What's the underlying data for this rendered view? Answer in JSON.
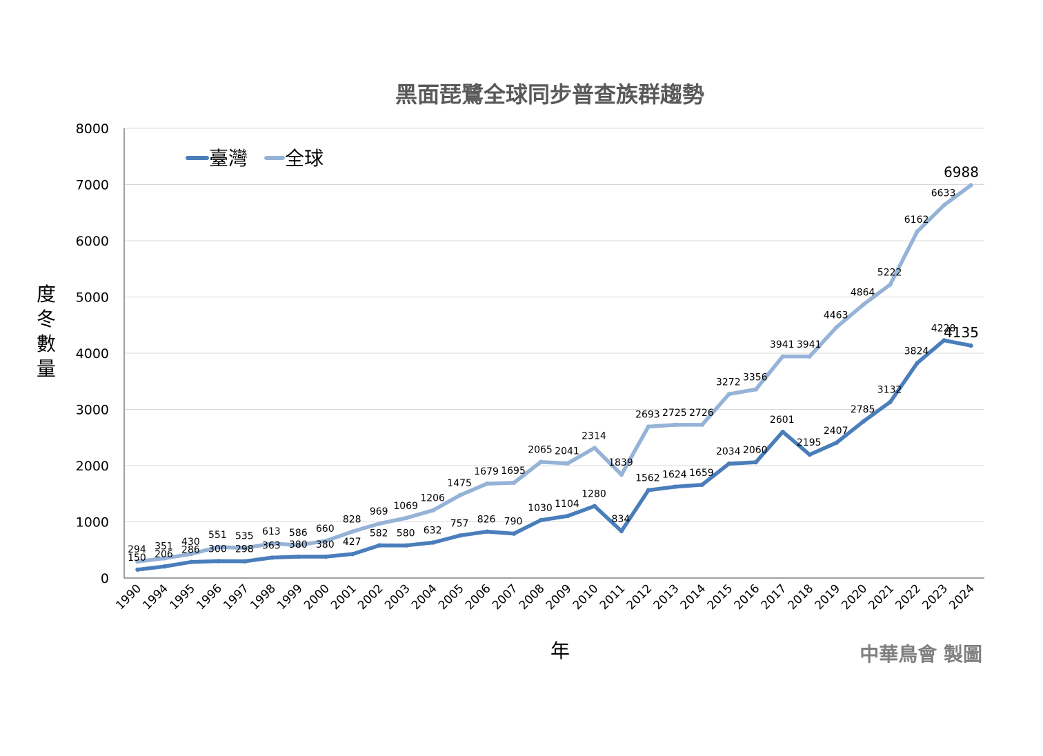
{
  "chart_data": {
    "type": "line",
    "title": "黑面琵鷺全球同步普查族群趨勢",
    "xlabel": "年",
    "ylabel": "度冬數量",
    "ylim": [
      0,
      8000
    ],
    "yticks": [
      "0",
      "1000",
      "2000",
      "3000",
      "4000",
      "5000",
      "6000",
      "7000",
      "8000"
    ],
    "grid": "horizontal",
    "legend_position": "top-left",
    "credit": "中華鳥會 製圖",
    "x": [
      "1990",
      "1994",
      "1995",
      "1996",
      "1997",
      "1998",
      "1999",
      "2000",
      "2001",
      "2002",
      "2003",
      "2004",
      "2005",
      "2006",
      "2007",
      "2008",
      "2009",
      "2010",
      "2011",
      "2012",
      "2013",
      "2014",
      "2015",
      "2016",
      "2017",
      "2018",
      "2019",
      "2020",
      "2021",
      "2022",
      "2023",
      "2024"
    ],
    "series": [
      {
        "name": "臺灣",
        "color": "#4a7ebb",
        "values": [
          150,
          206,
          286,
          300,
          298,
          363,
          380,
          380,
          427,
          582,
          580,
          632,
          757,
          826,
          790,
          1030,
          1104,
          1280,
          834,
          1562,
          1624,
          1659,
          2034,
          2060,
          2601,
          2195,
          2407,
          2785,
          3132,
          3824,
          4228,
          4135
        ]
      },
      {
        "name": "全球",
        "color": "#95b3d7",
        "values": [
          294,
          351,
          430,
          551,
          535,
          613,
          586,
          660,
          828,
          969,
          1069,
          1206,
          1475,
          1679,
          1695,
          2065,
          2041,
          2314,
          1839,
          2693,
          2725,
          2726,
          3272,
          3356,
          3941,
          3941,
          4463,
          4864,
          5222,
          6162,
          6633,
          6988
        ]
      }
    ]
  }
}
